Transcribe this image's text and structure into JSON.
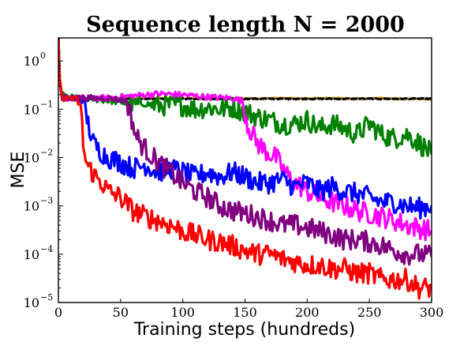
{
  "chart_data": {
    "type": "line",
    "title": "Sequence length N = 2000",
    "xlabel": "Training steps (hundreds)",
    "ylabel": "MSE",
    "xlim": [
      0,
      300
    ],
    "ylim": [
      1e-05,
      3
    ],
    "yscale": "log",
    "grid": false,
    "legend": "none",
    "x_ticks": [
      {
        "value": 0,
        "label": "0"
      },
      {
        "value": 50,
        "label": "50"
      },
      {
        "value": 100,
        "label": "100"
      },
      {
        "value": 150,
        "label": "150"
      },
      {
        "value": 200,
        "label": "200"
      },
      {
        "value": 250,
        "label": "250"
      },
      {
        "value": 300,
        "label": "300"
      }
    ],
    "y_ticks": [
      {
        "value": 1,
        "base": "10",
        "exp": "0"
      },
      {
        "value": 0.1,
        "base": "10",
        "exp": "−1"
      },
      {
        "value": 0.01,
        "base": "10",
        "exp": "−2"
      },
      {
        "value": 0.001,
        "base": "10",
        "exp": "−3"
      },
      {
        "value": 0.0001,
        "base": "10",
        "exp": "−4"
      },
      {
        "value": 1e-05,
        "base": "10",
        "exp": "−5"
      }
    ],
    "series": [
      {
        "color": "#FFA500",
        "dashed": true,
        "x": [
          0,
          1,
          3,
          10,
          20,
          40,
          60,
          80,
          100,
          120,
          140,
          160,
          180,
          200,
          220,
          240,
          260,
          280,
          300
        ],
        "y": [
          3,
          0.5,
          0.17,
          0.17,
          0.17,
          0.168,
          0.17,
          0.168,
          0.17,
          0.168,
          0.17,
          0.168,
          0.17,
          0.168,
          0.17,
          0.165,
          0.17,
          0.166,
          0.16
        ]
      },
      {
        "color": "#000000",
        "dashed": true,
        "x": [
          0,
          1,
          3,
          20,
          60,
          100,
          140,
          180,
          220,
          260,
          300
        ],
        "y": [
          3,
          0.4,
          0.165,
          0.165,
          0.165,
          0.165,
          0.165,
          0.165,
          0.165,
          0.165,
          0.165
        ]
      },
      {
        "color": "#008000",
        "x": [
          0,
          1,
          3,
          8,
          15,
          25,
          40,
          50,
          60,
          70,
          80,
          90,
          100,
          110,
          120,
          130,
          140,
          150,
          160,
          170,
          180,
          190,
          200,
          210,
          220,
          230,
          240,
          250,
          260,
          270,
          280,
          290,
          300
        ],
        "y": [
          3,
          0.4,
          0.2,
          0.18,
          0.17,
          0.165,
          0.15,
          0.14,
          0.12,
          0.13,
          0.12,
          0.12,
          0.12,
          0.1,
          0.11,
          0.1,
          0.11,
          0.09,
          0.07,
          0.06,
          0.05,
          0.05,
          0.06,
          0.04,
          0.05,
          0.04,
          0.03,
          0.05,
          0.03,
          0.025,
          0.03,
          0.02,
          0.012
        ]
      },
      {
        "color": "#FF00FF",
        "x": [
          0,
          1,
          3,
          20,
          40,
          60,
          80,
          100,
          120,
          140,
          148,
          152,
          156,
          160,
          165,
          170,
          175,
          180,
          185,
          190,
          195,
          200,
          210,
          220,
          230,
          240,
          250,
          260,
          270,
          280,
          290,
          300
        ],
        "y": [
          3,
          0.4,
          0.17,
          0.17,
          0.17,
          0.19,
          0.21,
          0.2,
          0.18,
          0.17,
          0.15,
          0.05,
          0.03,
          0.02,
          0.015,
          0.012,
          0.01,
          0.006,
          0.004,
          0.003,
          0.0025,
          0.002,
          0.0015,
          0.0012,
          0.001,
          0.0008,
          0.0007,
          0.0006,
          0.0005,
          0.0004,
          0.00035,
          0.0003
        ]
      },
      {
        "color": "#0000FF",
        "x": [
          0,
          1,
          3,
          15,
          20,
          24,
          28,
          32,
          36,
          40,
          50,
          60,
          70,
          80,
          90,
          100,
          110,
          120,
          130,
          140,
          150,
          160,
          170,
          180,
          190,
          200,
          210,
          220,
          230,
          240,
          250,
          260,
          270,
          280,
          290,
          300
        ],
        "y": [
          3,
          0.4,
          0.17,
          0.17,
          0.15,
          0.05,
          0.02,
          0.015,
          0.012,
          0.01,
          0.008,
          0.006,
          0.007,
          0.005,
          0.006,
          0.005,
          0.004,
          0.005,
          0.004,
          0.005,
          0.004,
          0.003,
          0.003,
          0.0035,
          0.0025,
          0.003,
          0.002,
          0.0025,
          0.002,
          0.0018,
          0.0015,
          0.0012,
          0.0012,
          0.001,
          0.0009,
          0.001
        ]
      },
      {
        "color": "#800080",
        "x": [
          0,
          1,
          3,
          20,
          40,
          55,
          58,
          62,
          66,
          70,
          80,
          90,
          100,
          110,
          120,
          130,
          140,
          150,
          160,
          170,
          180,
          190,
          200,
          210,
          220,
          230,
          240,
          250,
          260,
          270,
          280,
          290,
          300
        ],
        "y": [
          3,
          0.4,
          0.17,
          0.17,
          0.17,
          0.15,
          0.08,
          0.03,
          0.02,
          0.015,
          0.008,
          0.005,
          0.003,
          0.002,
          0.0015,
          0.001,
          0.0008,
          0.0007,
          0.0006,
          0.0005,
          0.0004,
          0.0004,
          0.00035,
          0.0003,
          0.00025,
          0.0002,
          0.0002,
          0.00018,
          0.00015,
          0.00012,
          0.0001,
          0.0001,
          9e-05
        ]
      },
      {
        "color": "#FF0000",
        "x": [
          0,
          1,
          3,
          10,
          15,
          18,
          20,
          22,
          25,
          30,
          35,
          40,
          50,
          60,
          70,
          80,
          90,
          100,
          110,
          120,
          130,
          140,
          150,
          160,
          170,
          180,
          190,
          200,
          210,
          220,
          230,
          240,
          250,
          260,
          270,
          280,
          290,
          300
        ],
        "y": [
          3,
          0.4,
          0.17,
          0.17,
          0.16,
          0.1,
          0.02,
          0.008,
          0.006,
          0.004,
          0.003,
          0.002,
          0.0015,
          0.0008,
          0.0006,
          0.0005,
          0.0004,
          0.0003,
          0.00025,
          0.0002,
          0.00018,
          0.00015,
          0.00012,
          0.0001,
          0.0001,
          8e-05,
          7e-05,
          6e-05,
          6e-05,
          5e-05,
          5e-05,
          4e-05,
          4e-05,
          3e-05,
          3e-05,
          3e-05,
          2e-05,
          2e-05
        ]
      }
    ]
  }
}
